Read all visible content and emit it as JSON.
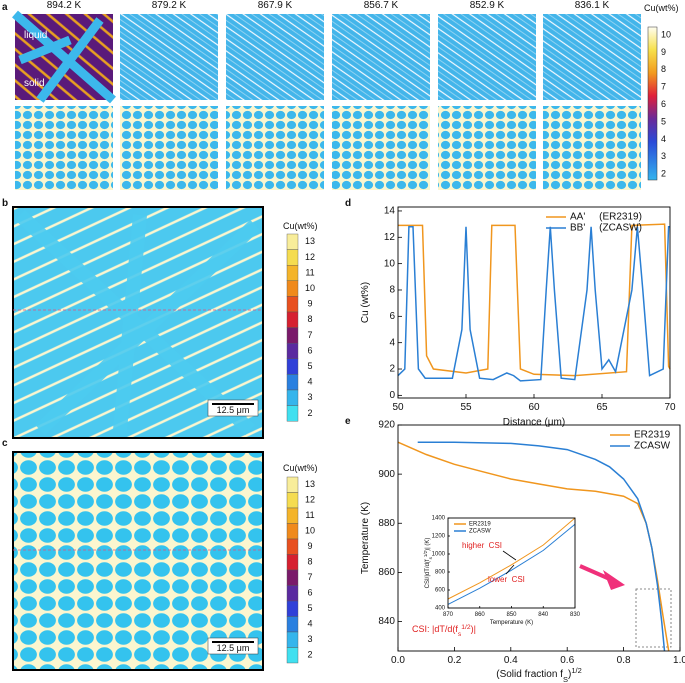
{
  "panel_a": {
    "label": "a",
    "temperatures": [
      "894.2 K",
      "879.2 K",
      "867.9 K",
      "856.7 K",
      "852.9 K",
      "836.1 K"
    ],
    "annotations": [
      "liquid",
      "solid"
    ],
    "colorbar_title": "Cu(wt%)",
    "colorbar_ticks": [
      10,
      9,
      8,
      7,
      6,
      5,
      4,
      3,
      2
    ]
  },
  "panel_b": {
    "label": "b",
    "colorbar_title": "Cu(wt%)",
    "colorbar_ticks": [
      13,
      12,
      11,
      10,
      9,
      8,
      7,
      6,
      5,
      4,
      3,
      2
    ],
    "scale_bar": "12.5 μm"
  },
  "panel_c": {
    "label": "c",
    "colorbar_title": "Cu(wt%)",
    "colorbar_ticks": [
      13,
      12,
      11,
      10,
      9,
      8,
      7,
      6,
      5,
      4,
      3,
      2
    ],
    "scale_bar": "12.5 μm"
  },
  "chart_data": [
    {
      "type": "line",
      "panel_label": "d",
      "xlabel": "Distance (μm)",
      "ylabel": "Cu (wt%)",
      "xlim": [
        50,
        70
      ],
      "xticks": [
        50,
        55,
        60,
        65,
        70
      ],
      "ylim": [
        -0.2,
        14.3
      ],
      "yticks": [
        0,
        2,
        4,
        6,
        8,
        10,
        12,
        14
      ],
      "legend": "top-right",
      "series": [
        {
          "name": "AA'     (ER2319)",
          "color": "#f0961e",
          "x": [
            50,
            51.8,
            52.1,
            52.6,
            55,
            56.6,
            56.9,
            58.6,
            59,
            60,
            63,
            66.8,
            67.2,
            69.6,
            69.9,
            70
          ],
          "values": [
            12.9,
            12.9,
            3,
            2,
            1.7,
            2,
            12.9,
            12.9,
            2,
            1.6,
            1.5,
            1.8,
            12.9,
            13,
            2.2,
            2
          ]
        },
        {
          "name": "BB'     (ZCASW)",
          "color": "#2a7fd4",
          "x": [
            50,
            50.5,
            50.8,
            51.1,
            51.5,
            52,
            54,
            54.7,
            55,
            55.3,
            56,
            57,
            58,
            58.5,
            59,
            60.5,
            60.9,
            61.2,
            61.5,
            62,
            63,
            63.9,
            64.2,
            64.5,
            65,
            65.5,
            66,
            67.2,
            67.6,
            68,
            68.5,
            69.5,
            69.9,
            70
          ],
          "values": [
            1.5,
            2,
            12.8,
            12.8,
            2,
            1.3,
            1.3,
            5,
            12.8,
            5,
            1.3,
            1.2,
            1.7,
            1.5,
            1.1,
            1.2,
            8,
            12.8,
            8,
            1.3,
            1.2,
            8,
            12.8,
            8,
            2,
            2.7,
            1.8,
            8,
            12.8,
            8,
            1.5,
            2,
            12.8,
            12.8
          ]
        }
      ]
    },
    {
      "type": "line",
      "panel_label": "e",
      "xlabel": [
        "(Solid fraction f",
        "S",
        ")",
        "1/2"
      ],
      "ylabel": "Temperature (K)",
      "xlim": [
        0,
        1
      ],
      "xticks": [
        {
          "value": 0,
          "label": "0.0"
        },
        0.2,
        0.4,
        0.6,
        0.8,
        {
          "value": 1,
          "label": "1.0"
        }
      ],
      "ylim": [
        828,
        920
      ],
      "yticks": [
        840,
        860,
        880,
        900,
        920
      ],
      "legend": "top-right",
      "annotation": [
        "CSI: |dT/d(f",
        "s",
        "1/2",
        ")|"
      ],
      "series": [
        {
          "name": "ER2319",
          "color": "#f0961e",
          "x": [
            0,
            0.1,
            0.2,
            0.3,
            0.4,
            0.5,
            0.6,
            0.7,
            0.8,
            0.85,
            0.88,
            0.9,
            0.92,
            0.94,
            0.96
          ],
          "values": [
            913,
            908,
            904,
            901,
            898,
            896,
            894,
            893,
            891,
            888,
            880,
            870,
            857,
            842,
            828
          ]
        },
        {
          "name": "ZCASW",
          "color": "#2a7fd4",
          "x": [
            0.07,
            0.2,
            0.4,
            0.5,
            0.6,
            0.7,
            0.75,
            0.8,
            0.85,
            0.88,
            0.9,
            0.92,
            0.935,
            0.945
          ],
          "values": [
            913,
            913,
            912.5,
            911.5,
            910,
            906,
            903,
            898,
            890,
            880,
            870,
            855,
            840,
            828
          ]
        }
      ]
    },
    {
      "type": "line",
      "xlabel": "Temperature (K)",
      "ylabel": [
        "CSI/|dT/d(f",
        "s",
        "1/2",
        ")| (K)"
      ],
      "xlim": [
        870,
        830
      ],
      "xticks": [
        870,
        860,
        850,
        840,
        830
      ],
      "ylim": [
        400,
        1400
      ],
      "yticks": [
        400,
        600,
        800,
        1000,
        1200,
        1400
      ],
      "legend": "top-left",
      "annotations": [
        "higher  CSI",
        "lower  CSI"
      ],
      "series": [
        {
          "name": "ER2319",
          "color": "#f0961e",
          "x": [
            870,
            860,
            850,
            840,
            830
          ],
          "values": [
            500,
            680,
            880,
            1100,
            1400
          ]
        },
        {
          "name": "ZCASW",
          "color": "#2a7fd4",
          "x": [
            870,
            860,
            850,
            840,
            830
          ],
          "values": [
            440,
            620,
            820,
            1040,
            1330
          ]
        }
      ]
    }
  ]
}
